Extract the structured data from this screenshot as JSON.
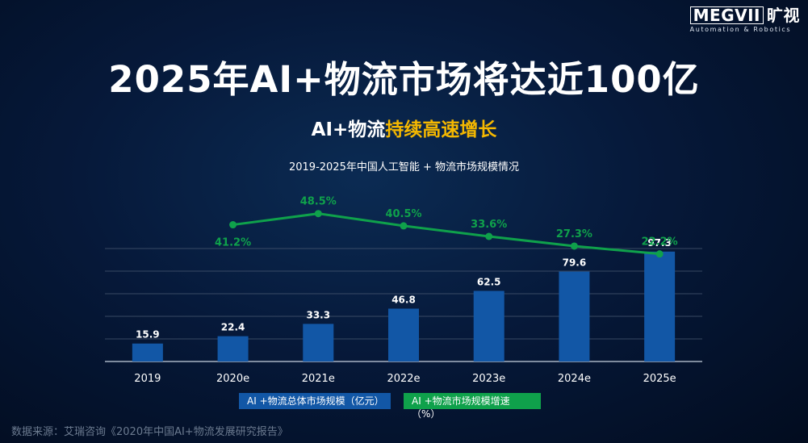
{
  "logo": {
    "brand_box": "MEGVII",
    "brand_cn": "旷视",
    "tagline": "Automation & Robotics"
  },
  "title": "2025年AI+物流市场将达近100亿",
  "subtitle": {
    "white": "AI+物流",
    "yellow": "持续高速增长"
  },
  "colors": {
    "bar": "#1257a6",
    "line": "#0fa14b",
    "highlight": "#f5b800"
  },
  "chart_data": {
    "type": "bar",
    "title": "2019-2025年中国人工智能 + 物流市场规模情况",
    "categories": [
      "2019",
      "2020e",
      "2021e",
      "2022e",
      "2023e",
      "2024e",
      "2025e"
    ],
    "ylim": [
      0,
      100
    ],
    "series": [
      {
        "name": "AI +物流总体市场规模（亿元）",
        "type": "bar",
        "values": [
          15.9,
          22.4,
          33.3,
          46.8,
          62.5,
          79.6,
          97.3
        ],
        "labels": [
          "15.9",
          "22.4",
          "33.3",
          "46.8",
          "62.5",
          "79.6",
          "97.3"
        ]
      },
      {
        "name": "AI +物流市场规模增速（%）",
        "type": "line",
        "values": [
          null,
          41.2,
          48.5,
          40.5,
          33.6,
          27.3,
          22.2
        ],
        "labels": [
          "",
          "41.2%",
          "48.5%",
          "40.5%",
          "33.6%",
          "27.3%",
          "22.2%"
        ]
      }
    ]
  },
  "source": "数据来源：艾瑞咨询《2020年中国AI+物流发展研究报告》"
}
